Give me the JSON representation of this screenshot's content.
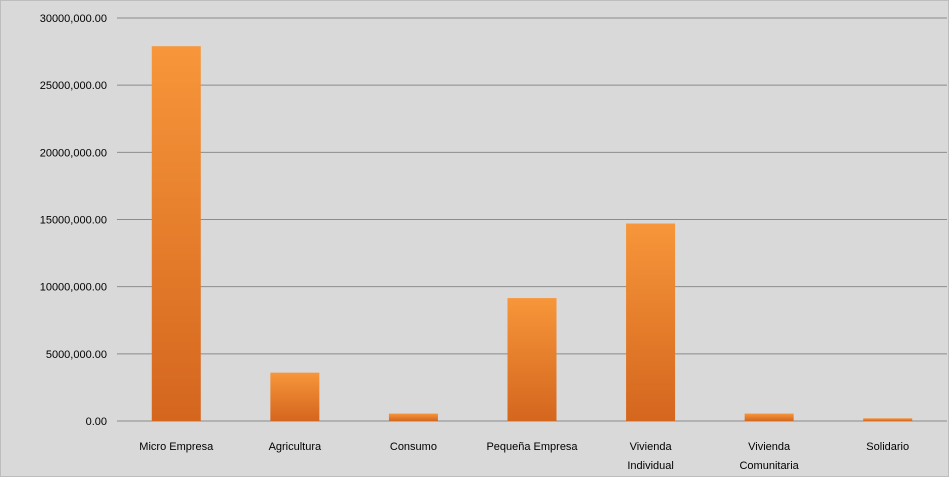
{
  "chart_data": {
    "type": "bar",
    "categories": [
      [
        "Micro Empresa"
      ],
      [
        "Agricultura"
      ],
      [
        "Consumo"
      ],
      [
        "Pequeña Empresa"
      ],
      [
        "Vivienda",
        "Individual"
      ],
      [
        "Vivienda",
        "Comunitaria"
      ],
      [
        "Solidario"
      ]
    ],
    "values": [
      27900000,
      3600000,
      550000,
      9150000,
      14700000,
      550000,
      200000
    ],
    "y_ticks": [
      {
        "value": 0,
        "label": "0.00"
      },
      {
        "value": 5000000,
        "label": "5000,000.00"
      },
      {
        "value": 10000000,
        "label": "10000,000.00"
      },
      {
        "value": 15000000,
        "label": "15000,000.00"
      },
      {
        "value": 20000000,
        "label": "20000,000.00"
      },
      {
        "value": 25000000,
        "label": "25000,000.00"
      },
      {
        "value": 30000000,
        "label": "30000,000.00"
      }
    ],
    "ylim": [
      0,
      30000000
    ],
    "grid": true,
    "colors": {
      "bar_top": "#f7963a",
      "bar_bottom": "#d4661e",
      "grid": "#8c8c8c",
      "background": "#d9d9d9"
    }
  }
}
